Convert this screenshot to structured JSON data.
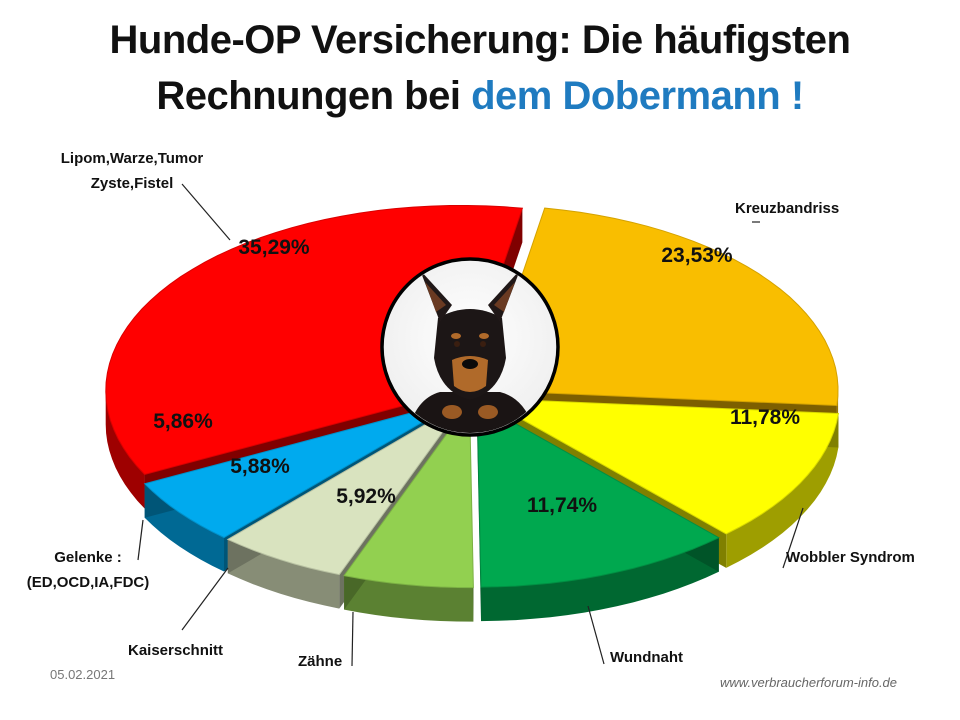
{
  "title": {
    "line1": "Hunde-OP Versicherung: Die häufigsten",
    "line2_start": "Rechnungen bei ",
    "line2_highlight": "dem Dobermann !"
  },
  "chart_data": {
    "type": "pie",
    "title": "Hunde-OP Versicherung: Die häufigsten Rechnungen bei dem Dobermann !",
    "slices": [
      {
        "label_lines": [
          "Kreuzbandriss"
        ],
        "value": 23.53,
        "display": "23,53%",
        "color": "#f9be00"
      },
      {
        "label_lines": [
          "Wobbler Syndrom"
        ],
        "value": 11.78,
        "display": "11,78%",
        "color": "#ffff00"
      },
      {
        "label_lines": [
          "Wundnaht"
        ],
        "value": 11.74,
        "display": "11,74%",
        "color": "#00a84f"
      },
      {
        "label_lines": [
          "Zähne"
        ],
        "value": 5.92,
        "display": "5,92%",
        "color": "#92d050"
      },
      {
        "label_lines": [
          "Kaiserschnitt"
        ],
        "value": 5.88,
        "display": "5,88%",
        "color": "#d9e3bf"
      },
      {
        "label_lines": [
          "Gelenke :",
          "(ED,OCD,IA,FDC)"
        ],
        "value": 5.86,
        "display": "5,86%",
        "color": "#00aaee"
      },
      {
        "label_lines": [
          "Lipom,Warze,Tumor",
          "Zyste,Fistel"
        ],
        "value": 35.29,
        "display": "35,29%",
        "color": "#ff0000"
      }
    ]
  },
  "footer": {
    "date": "05.02.2021",
    "url": "www.verbraucherforum-info.de"
  },
  "image": {
    "icon": "dog-icon"
  }
}
